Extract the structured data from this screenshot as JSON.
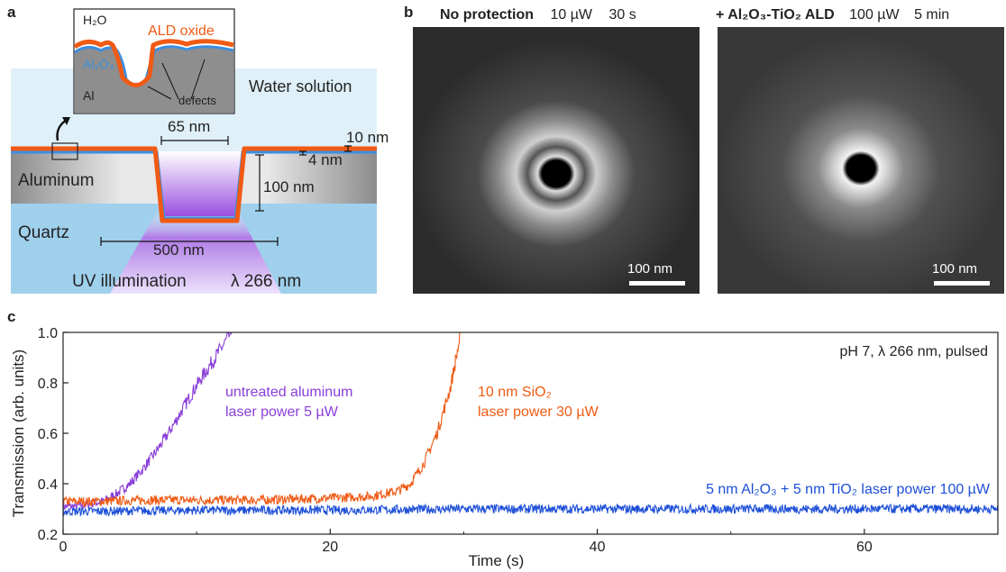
{
  "panel_a": {
    "letter": "a",
    "inset": {
      "h2o": "H₂O",
      "ald_oxide": "ALD oxide",
      "al2o3": "Al₂O₃",
      "al": "Al",
      "defects": "defects"
    },
    "water_solution": "Water solution",
    "width_65": "65 nm",
    "thick_10": "10 nm",
    "thick_4": "4 nm",
    "aluminum": "Aluminum",
    "depth_100": "100 nm",
    "quartz": "Quartz",
    "width_500": "500 nm",
    "uv_illumination": "UV illumination",
    "wavelength": "λ 266 nm",
    "colors": {
      "oxide": "#f05a14",
      "al2o3": "#3c8ee0",
      "water": "#dff0f8",
      "quartz": "#9fd0ec",
      "uv": "#8a3ed8"
    }
  },
  "panel_b": {
    "letter": "b",
    "left": {
      "title_bold": "No protection",
      "power": "10 µW",
      "time": "30 s",
      "scale": "100 nm"
    },
    "right": {
      "title_bold": "+ Al₂O₃-TiO₂ ALD",
      "power": "100 µW",
      "time": "5 min",
      "scale": "100 nm"
    }
  },
  "panel_c": {
    "letter": "c"
  },
  "chart_data": {
    "type": "line",
    "title": "",
    "xlabel": "Time (s)",
    "ylabel": "Transmission (arb. units)",
    "xlim": [
      0,
      70
    ],
    "ylim": [
      0.2,
      1.0
    ],
    "xticks": [
      0,
      20,
      40,
      60
    ],
    "yticks": [
      0.2,
      0.4,
      0.6,
      0.8,
      1.0
    ],
    "annotation": "pH 7, λ 266 nm, pulsed",
    "series": [
      {
        "name": "untreated aluminum laser power 5 µW",
        "label_lines": [
          "untreated aluminum",
          "laser power 5 µW"
        ],
        "color": "#8a3ed8",
        "x": [
          0,
          1,
          2,
          3,
          4,
          5,
          6,
          7,
          8,
          9,
          10,
          11,
          12,
          12.6
        ],
        "y": [
          0.31,
          0.31,
          0.32,
          0.33,
          0.36,
          0.4,
          0.46,
          0.53,
          0.61,
          0.7,
          0.79,
          0.87,
          0.95,
          1.0
        ]
      },
      {
        "name": "10 nm SiO₂ laser power 30 µW",
        "label_lines": [
          "10 nm SiO₂",
          "laser power 30 µW"
        ],
        "color": "#f05a14",
        "x": [
          0,
          3,
          6,
          10,
          14,
          18,
          21,
          23,
          25,
          26,
          27,
          28,
          29,
          29.8
        ],
        "y": [
          0.33,
          0.33,
          0.335,
          0.335,
          0.335,
          0.34,
          0.345,
          0.35,
          0.37,
          0.4,
          0.48,
          0.6,
          0.78,
          1.0
        ]
      },
      {
        "name": "5 nm Al₂O₃ + 5 nm TiO₂ laser power 100 µW",
        "label_lines": [
          "5 nm Al₂O₃ + 5 nm TiO₂  laser power 100 µW"
        ],
        "color": "#1d4fd8",
        "x": [
          0,
          10,
          20,
          30,
          40,
          50,
          60,
          70
        ],
        "y": [
          0.29,
          0.295,
          0.295,
          0.3,
          0.3,
          0.3,
          0.3,
          0.3
        ]
      }
    ]
  }
}
